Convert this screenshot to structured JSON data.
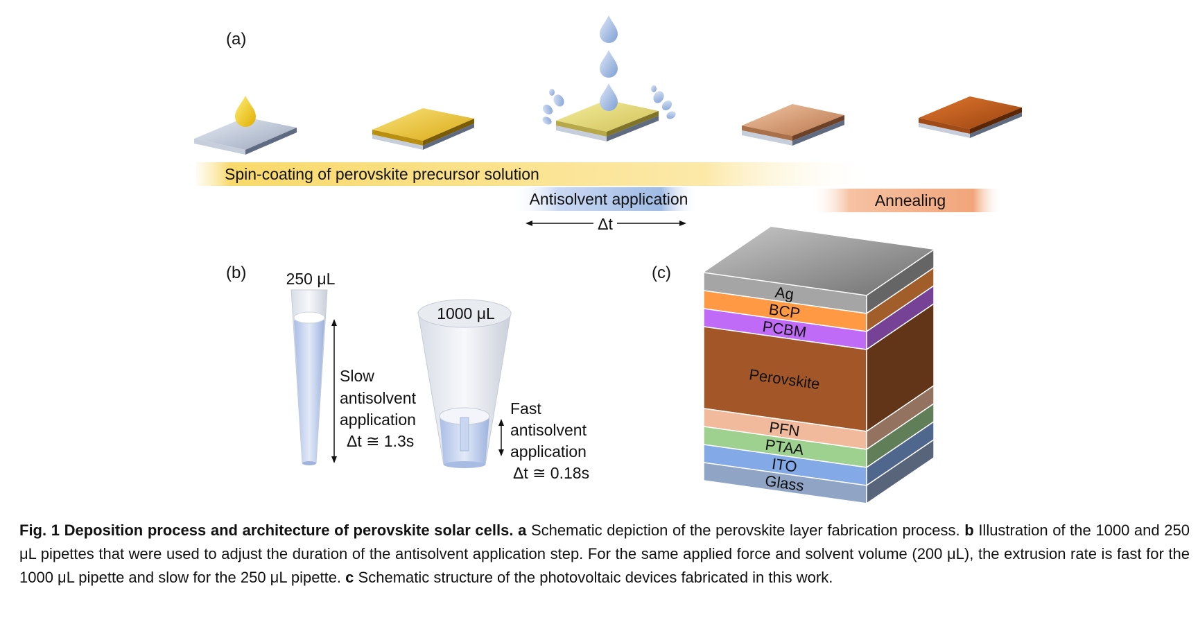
{
  "figure": {
    "panel_a": {
      "label": "(a)",
      "step_spin": "Spin-coating of perovskite precursor solution",
      "step_antisolvent": "Antisolvent application",
      "step_annealing": "Annealing",
      "delta_t": "Δt",
      "colors": {
        "precursor": "#f4cf3a",
        "antisolvent": "#9fbbe4",
        "annealing": "#c4611f",
        "substrate": "#b9c4d6"
      }
    },
    "panel_b": {
      "label": "(b)",
      "small_pipette": "250 μL",
      "large_pipette": "1000 μL",
      "slow_text": [
        "Slow",
        "antisolvent",
        "application",
        "Δt ≅ 1.3s"
      ],
      "fast_text": [
        "Fast",
        "antisolvent",
        "application",
        "Δt ≅ 0.18s"
      ]
    },
    "panel_c": {
      "label": "(c)",
      "layers": [
        {
          "name": "Ag",
          "color": "#8c8c8c"
        },
        {
          "name": "BCP",
          "color": "#e0823a"
        },
        {
          "name": "PCBM",
          "color": "#a35bd1"
        },
        {
          "name": "Perovskite",
          "color": "#8a4a22"
        },
        {
          "name": "PFN",
          "color": "#cc9e84"
        },
        {
          "name": "PTAA",
          "color": "#86b07a"
        },
        {
          "name": "ITO",
          "color": "#6f8fc4"
        },
        {
          "name": "Glass",
          "color": "#7a8ba8"
        }
      ]
    }
  },
  "caption": {
    "title": "Fig. 1 Deposition process and architecture of perovskite solar cells.",
    "a_label": "a",
    "a_text": "Schematic depiction of the perovskite layer fabrication process.",
    "b_label": "b",
    "b_text": "Illustration of the 1000 and 250 μL pipettes that were used to adjust the duration of the antisolvent application step. For the same applied force and solvent volume (200 μL), the extrusion rate is fast for the 1000 μL pipette and slow for the 250 μL pipette.",
    "c_label": "c",
    "c_text": "Schematic structure of the photovoltaic devices fabricated in this work."
  }
}
